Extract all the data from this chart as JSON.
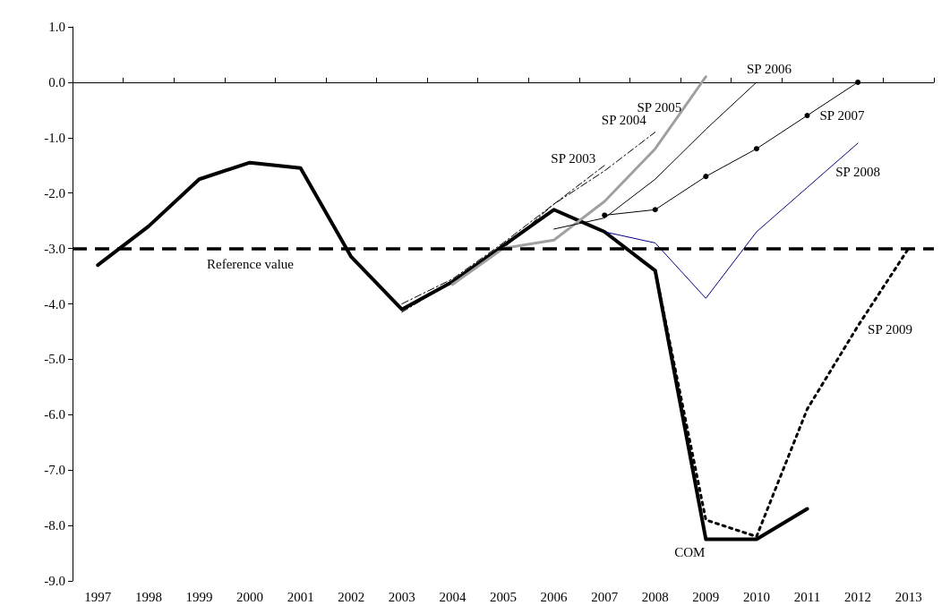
{
  "chart_data": {
    "type": "line",
    "categories": [
      "1997",
      "1998",
      "1999",
      "2000",
      "2001",
      "2002",
      "2003",
      "2004",
      "2005",
      "2006",
      "2007",
      "2008",
      "2009",
      "2010",
      "2011",
      "2012",
      "2013"
    ],
    "ylim": [
      -9,
      1
    ],
    "yticks": [
      {
        "value": 1,
        "label": "1.0"
      },
      {
        "value": 0,
        "label": "0.0"
      },
      {
        "value": -1,
        "label": "-1.0"
      },
      {
        "value": -2,
        "label": "-2.0"
      },
      {
        "value": -3,
        "label": "-3.0"
      },
      {
        "value": -4,
        "label": "-4.0"
      },
      {
        "value": -5,
        "label": "-5.0"
      },
      {
        "value": -6,
        "label": "-6.0"
      },
      {
        "value": -7,
        "label": "-7.0"
      },
      {
        "value": -8,
        "label": "-8.0"
      },
      {
        "value": -9,
        "label": "-9.0"
      }
    ],
    "grid": false,
    "legend": false,
    "marker": "none",
    "ref_lines": [
      {
        "axis": "y",
        "value": -3,
        "label": "Reference value",
        "color": "#000000",
        "line_style": "dashed"
      }
    ],
    "series": [
      {
        "name": "COM",
        "color": "#000000",
        "line_style": "solid",
        "values": [
          -3.3,
          -2.6,
          -1.75,
          -1.45,
          -1.55,
          -3.15,
          -4.1,
          -3.6,
          -2.95,
          -2.3,
          -2.7,
          -3.4,
          -8.25,
          -8.25,
          -7.7,
          null,
          null
        ]
      },
      {
        "name": "SP 2003",
        "color": "#000000",
        "line_style": "dashed",
        "values": [
          null,
          null,
          null,
          null,
          null,
          null,
          -4.15,
          -3.6,
          -3.0,
          -2.2,
          -1.5,
          null,
          null,
          null,
          null,
          null,
          null
        ]
      },
      {
        "name": "SP 2004",
        "color": "#000000",
        "line_style": "dashed",
        "values": [
          null,
          null,
          null,
          null,
          null,
          null,
          -4.0,
          -3.55,
          -2.9,
          -2.2,
          -1.6,
          -0.9,
          null,
          null,
          null,
          null,
          null
        ]
      },
      {
        "name": "SP 2005",
        "color": "#a0a0a0",
        "line_style": "solid",
        "values": [
          null,
          null,
          null,
          null,
          null,
          null,
          null,
          -3.65,
          -3.0,
          -2.85,
          -2.15,
          -1.2,
          0.1,
          null,
          null,
          null,
          null
        ]
      },
      {
        "name": "SP 2006",
        "color": "#000000",
        "line_style": "solid",
        "values": [
          null,
          null,
          null,
          null,
          null,
          null,
          null,
          null,
          null,
          -2.65,
          -2.45,
          -1.75,
          -0.85,
          0.0,
          null,
          null,
          null
        ]
      },
      {
        "name": "SP 2007",
        "color": "#000000",
        "line_style": "solid",
        "marker": "circle",
        "values": [
          null,
          null,
          null,
          null,
          null,
          null,
          null,
          null,
          null,
          null,
          -2.4,
          -2.3,
          -1.7,
          -1.2,
          -0.6,
          0.0,
          null
        ]
      },
      {
        "name": "SP 2008",
        "color": "#000080",
        "line_style": "solid",
        "values": [
          null,
          null,
          null,
          null,
          null,
          null,
          null,
          null,
          null,
          null,
          -2.7,
          -2.9,
          -3.9,
          -2.7,
          -1.9,
          -1.1,
          null
        ]
      },
      {
        "name": "SP 2009",
        "color": "#000000",
        "line_style": "dotted",
        "values": [
          null,
          null,
          null,
          null,
          null,
          null,
          null,
          null,
          null,
          null,
          null,
          -3.4,
          -7.9,
          -8.2,
          -5.9,
          -4.4,
          -3.0
        ]
      }
    ]
  }
}
